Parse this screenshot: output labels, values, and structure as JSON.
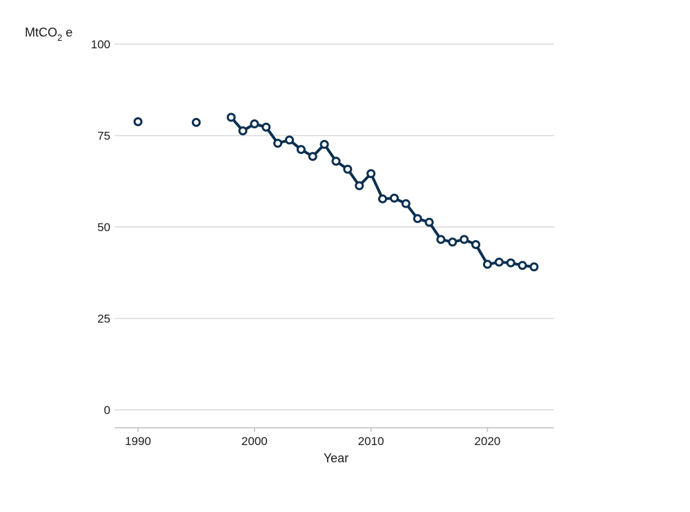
{
  "chart_data": {
    "type": "line",
    "unit": "MtCO",
    "unit_sub": "2",
    "unit_suffix": " e",
    "xlabel": "Year",
    "ylabel": "",
    "xlim": [
      1990,
      2024
    ],
    "ylim": [
      0,
      100
    ],
    "yticks": [
      0,
      25,
      50,
      75,
      100
    ],
    "xticks": [
      1990,
      2000,
      2010,
      2020
    ],
    "grid": true,
    "colors": {
      "series": "#0b2f50",
      "grid": "#d9d9d9",
      "axis": "#bfbfbf"
    },
    "series": [
      {
        "x": [
          1990,
          1995,
          1998,
          1999,
          2000,
          2001,
          2002,
          2003,
          2004,
          2005,
          2006,
          2007,
          2008,
          2009,
          2010,
          2011,
          2012,
          2013,
          2014,
          2015,
          2016,
          2017,
          2018,
          2019,
          2020,
          2021,
          2022,
          2023,
          2024
        ],
        "values": [
          78.8,
          78.6,
          80.0,
          76.3,
          78.2,
          77.3,
          72.9,
          73.8,
          71.2,
          69.3,
          72.6,
          68.0,
          65.8,
          61.3,
          64.6,
          57.7,
          57.9,
          56.4,
          52.3,
          51.3,
          46.6,
          45.9,
          46.6,
          45.2,
          39.8,
          40.4,
          40.2,
          39.5,
          39.1
        ]
      }
    ]
  }
}
